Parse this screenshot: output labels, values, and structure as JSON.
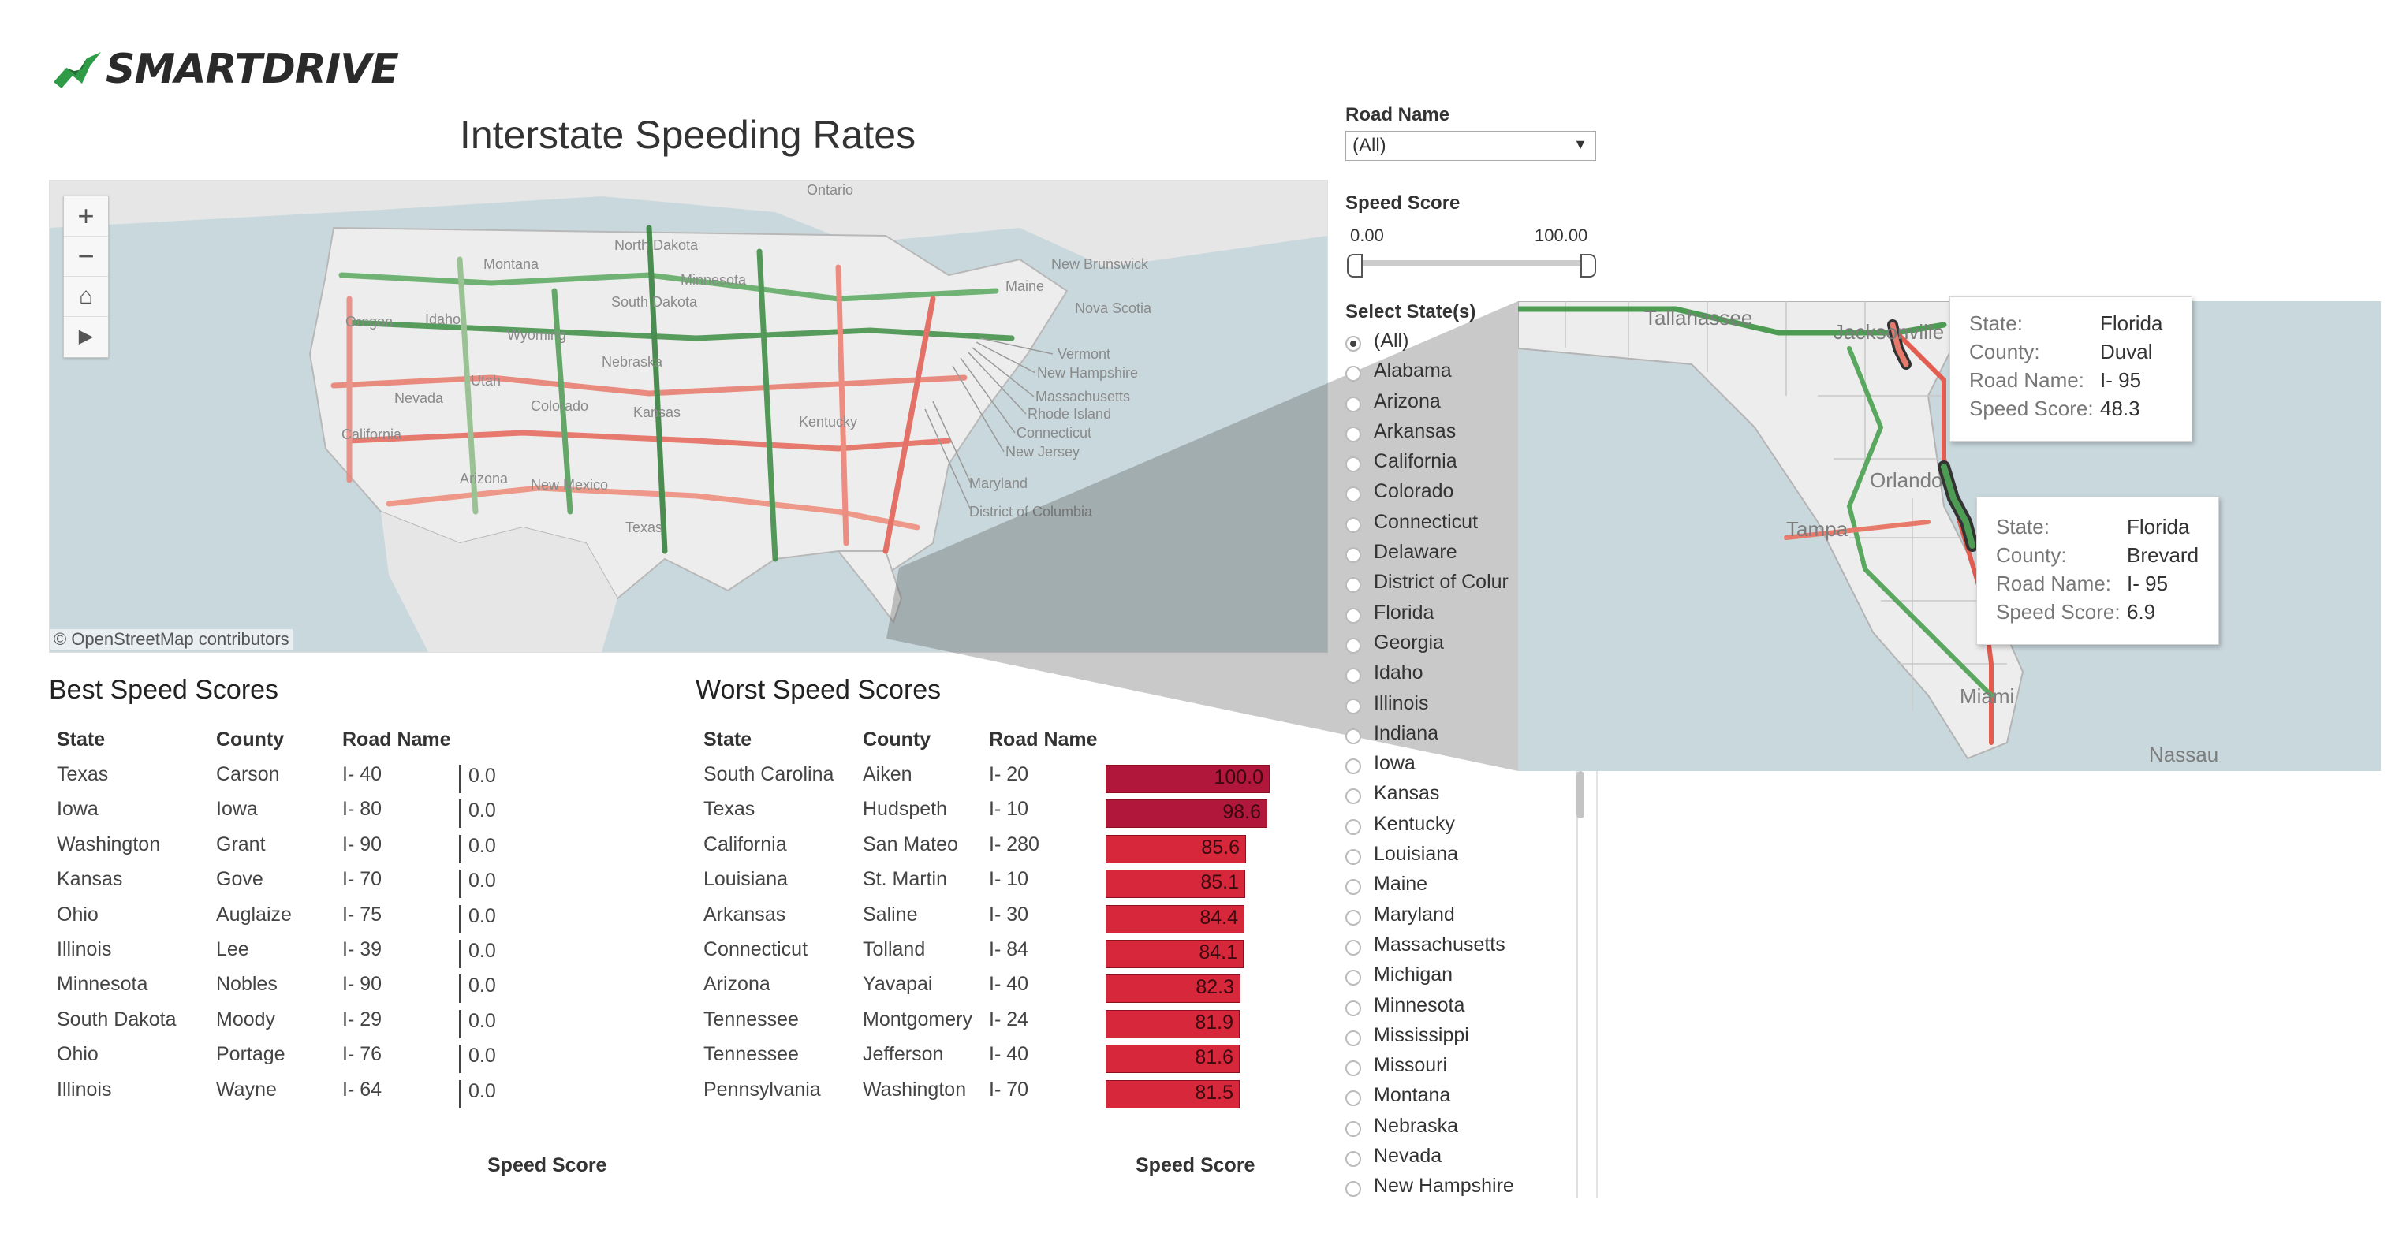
{
  "brand": {
    "name": "SMARTDRIVE",
    "accent": "#2e9b47"
  },
  "title": "Interstate Speeding Rates",
  "map": {
    "attribution": "© OpenStreetMap contributors",
    "labels": [
      "Ontario",
      "North Dakota",
      "Montana",
      "Minnesota",
      "South Dakota",
      "Oregon",
      "Idaho",
      "Wyoming",
      "Nebraska",
      "Nevada",
      "Utah",
      "Colorado",
      "Kansas",
      "California",
      "Arizona",
      "New Mexico",
      "Texas",
      "Kentucky",
      "Vermont",
      "New Hampshire",
      "Massachusetts",
      "Rhode Island",
      "Connecticut",
      "New Jersey",
      "Maryland",
      "District of Columbia",
      "New Brunswick",
      "Maine",
      "Nova Scotia"
    ],
    "controls": {
      "zoom_in": "+",
      "zoom_out": "−",
      "home": "⌂",
      "play": "▶"
    }
  },
  "best": {
    "heading": "Best Speed Scores",
    "columns": [
      "State",
      "County",
      "Road Name"
    ],
    "footer": "Speed Score",
    "rows": [
      {
        "state": "Texas",
        "county": "Carson",
        "road": "I- 40",
        "score": "0.0"
      },
      {
        "state": "Iowa",
        "county": "Iowa",
        "road": "I- 80",
        "score": "0.0"
      },
      {
        "state": "Washington",
        "county": "Grant",
        "road": "I- 90",
        "score": "0.0"
      },
      {
        "state": "Kansas",
        "county": "Gove",
        "road": "I- 70",
        "score": "0.0"
      },
      {
        "state": "Ohio",
        "county": "Auglaize",
        "road": "I- 75",
        "score": "0.0"
      },
      {
        "state": "Illinois",
        "county": "Lee",
        "road": "I- 39",
        "score": "0.0"
      },
      {
        "state": "Minnesota",
        "county": "Nobles",
        "road": "I- 90",
        "score": "0.0"
      },
      {
        "state": "South Dakota",
        "county": "Moody",
        "road": "I- 29",
        "score": "0.0"
      },
      {
        "state": "Ohio",
        "county": "Portage",
        "road": "I- 76",
        "score": "0.0"
      },
      {
        "state": "Illinois",
        "county": "Wayne",
        "road": "I- 64",
        "score": "0.0"
      }
    ]
  },
  "worst": {
    "heading": "Worst Speed Scores",
    "columns": [
      "State",
      "County",
      "Road Name"
    ],
    "footer": "Speed Score",
    "rows": [
      {
        "state": "South Carolina",
        "county": "Aiken",
        "road": "I- 20",
        "score": "100.0",
        "value": 100.0
      },
      {
        "state": "Texas",
        "county": "Hudspeth",
        "road": "I- 10",
        "score": "98.6",
        "value": 98.6
      },
      {
        "state": "California",
        "county": "San Mateo",
        "road": "I- 280",
        "score": "85.6",
        "value": 85.6
      },
      {
        "state": "Louisiana",
        "county": "St. Martin",
        "road": "I- 10",
        "score": "85.1",
        "value": 85.1
      },
      {
        "state": "Arkansas",
        "county": "Saline",
        "road": "I- 30",
        "score": "84.4",
        "value": 84.4
      },
      {
        "state": "Connecticut",
        "county": "Tolland",
        "road": "I- 84",
        "score": "84.1",
        "value": 84.1
      },
      {
        "state": "Arizona",
        "county": "Yavapai",
        "road": "I- 40",
        "score": "82.3",
        "value": 82.3
      },
      {
        "state": "Tennessee",
        "county": "Montgomery",
        "road": "I- 24",
        "score": "81.9",
        "value": 81.9
      },
      {
        "state": "Tennessee",
        "county": "Jefferson",
        "road": "I- 40",
        "score": "81.6",
        "value": 81.6
      },
      {
        "state": "Pennsylvania",
        "county": "Washington",
        "road": "I- 70",
        "score": "81.5",
        "value": 81.5
      }
    ]
  },
  "filters": {
    "road_name": {
      "label": "Road Name",
      "value": "(All)"
    },
    "speed_score": {
      "label": "Speed Score",
      "min": "0.00",
      "max": "100.00"
    },
    "states": {
      "label": "Select State(s)",
      "selected": "(All)",
      "options": [
        "(All)",
        "Alabama",
        "Arizona",
        "Arkansas",
        "California",
        "Colorado",
        "Connecticut",
        "Delaware",
        "District of Colur",
        "Florida",
        "Georgia",
        "Idaho",
        "Illinois",
        "Indiana",
        "Iowa",
        "Kansas",
        "Kentucky",
        "Louisiana",
        "Maine",
        "Maryland",
        "Massachusetts",
        "Michigan",
        "Minnesota",
        "Mississippi",
        "Missouri",
        "Montana",
        "Nebraska",
        "Nevada",
        "New Hampshire"
      ]
    }
  },
  "inset": {
    "labels": [
      "Tallahassee",
      "Jacksonville",
      "Orlando",
      "Tampa",
      "Miami",
      "Nassau"
    ],
    "tooltips": [
      {
        "k1": "State:",
        "v1": "Florida",
        "k2": "County:",
        "v2": "Duval",
        "k3": "Road Name:",
        "v3": "I- 95",
        "k4": "Speed Score:",
        "v4": "48.3"
      },
      {
        "k1": "State:",
        "v1": "Florida",
        "k2": "County:",
        "v2": "Brevard",
        "k3": "Road Name:",
        "v3": "I- 95",
        "k4": "Speed Score:",
        "v4": "6.9"
      }
    ]
  },
  "colors": {
    "good": "#2e7d32",
    "bad": "#d6273b",
    "worst": "#b0173a",
    "land": "#ededed",
    "water": "#c9d8dd"
  }
}
